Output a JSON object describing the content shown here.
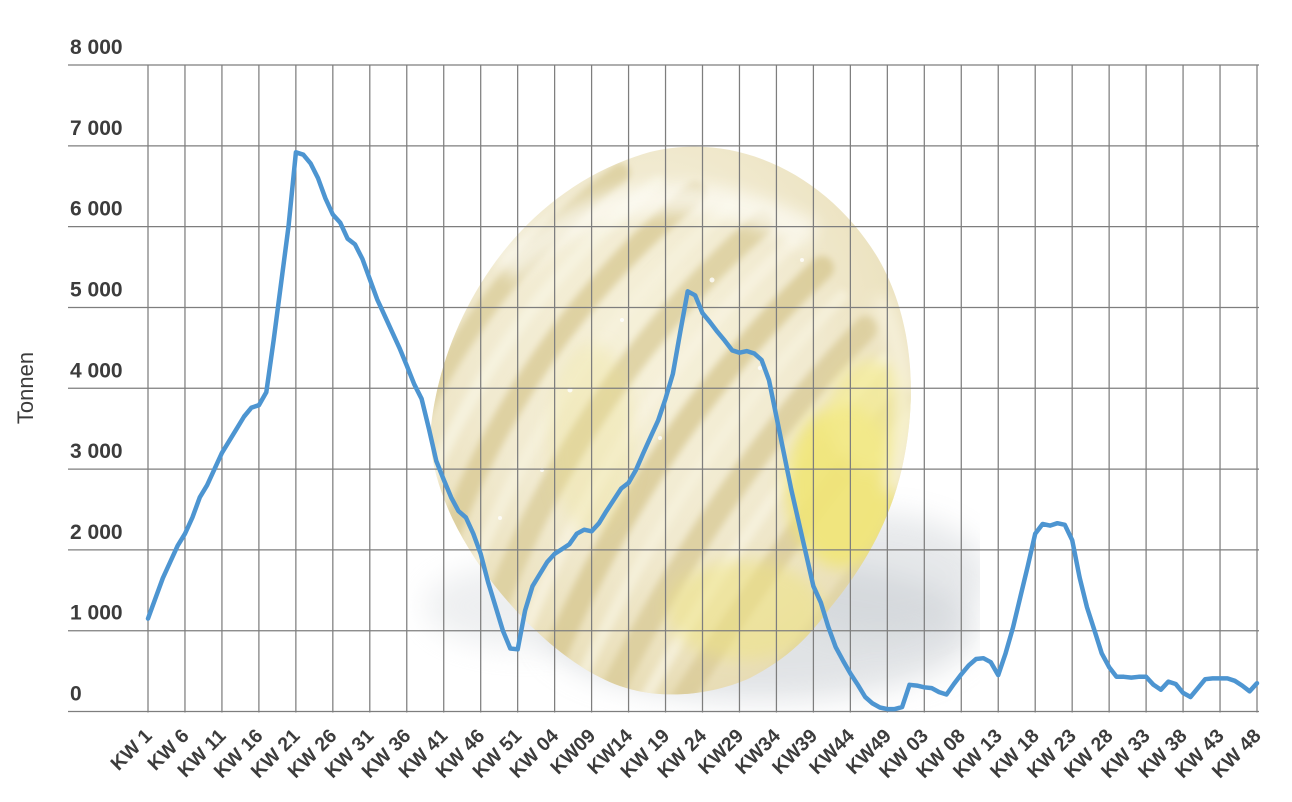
{
  "chart_data": {
    "type": "line",
    "title": "",
    "ylabel": "Tonnen",
    "xlabel": "",
    "ylim": [
      0,
      8000
    ],
    "y_tick_interval": 1000,
    "y_ticks": [
      "8 000",
      "7 000",
      "6 000",
      "5 000",
      "4 000",
      "3 000",
      "2 000",
      "1 000",
      "0"
    ],
    "x_tick_every": 5,
    "x_tick_labels": [
      "KW 1",
      "KW 6",
      "KW 11",
      "KW 16",
      "KW 21",
      "KW 26",
      "KW 31",
      "KW 36",
      "KW 41",
      "KW 46",
      "KW 51",
      "KW 04",
      "KW09",
      "KW14",
      "KW 19",
      "KW 24",
      "KW29",
      "KW34",
      "KW39",
      "KW44",
      "KW49",
      "KW 03",
      "KW 08",
      "KW 13",
      "KW 18",
      "KW 23",
      "KW 28",
      "KW 33",
      "KW 38",
      "KW 43",
      "KW 48"
    ],
    "grid": true,
    "legend": "none",
    "decoration": "butter-curl-photo-behind-grid",
    "colors": {
      "line": "#4d95d1",
      "grid": "#7e7e7e",
      "text": "#3c3c3c",
      "butter_cream": "#f1ead0",
      "butter_ridge": "#d9cb96",
      "butter_yellow": "#f1e577",
      "shadow_gray": "#c3c8cd"
    },
    "series": [
      {
        "name": "Tonnen",
        "unit": "Tonnen",
        "values": [
          1150,
          1400,
          1650,
          1850,
          2050,
          2200,
          2400,
          2650,
          2800,
          3000,
          3200,
          3350,
          3500,
          3650,
          3760,
          3790,
          3950,
          4600,
          5300,
          6000,
          6920,
          6890,
          6780,
          6600,
          6350,
          6150,
          6050,
          5850,
          5780,
          5600,
          5350,
          5100,
          4900,
          4700,
          4500,
          4280,
          4050,
          3870,
          3500,
          3100,
          2870,
          2650,
          2480,
          2400,
          2200,
          1950,
          1600,
          1300,
          1000,
          780,
          770,
          1250,
          1550,
          1700,
          1850,
          1950,
          2010,
          2070,
          2200,
          2250,
          2230,
          2330,
          2480,
          2620,
          2760,
          2830,
          2990,
          3200,
          3400,
          3600,
          3870,
          4180,
          4700,
          5200,
          5150,
          4930,
          4820,
          4700,
          4590,
          4470,
          4440,
          4460,
          4430,
          4350,
          4100,
          3650,
          3200,
          2750,
          2350,
          1950,
          1550,
          1350,
          1050,
          800,
          630,
          470,
          330,
          180,
          100,
          50,
          30,
          30,
          55,
          330,
          320,
          300,
          290,
          240,
          210,
          340,
          460,
          570,
          650,
          660,
          610,
          450,
          720,
          1040,
          1420,
          1800,
          2200,
          2320,
          2300,
          2330,
          2310,
          2120,
          1660,
          1290,
          1010,
          720,
          550,
          430,
          430,
          420,
          430,
          430,
          330,
          270,
          370,
          340,
          230,
          180,
          290,
          400,
          410,
          410,
          410,
          380,
          320,
          250,
          350
        ]
      }
    ]
  }
}
